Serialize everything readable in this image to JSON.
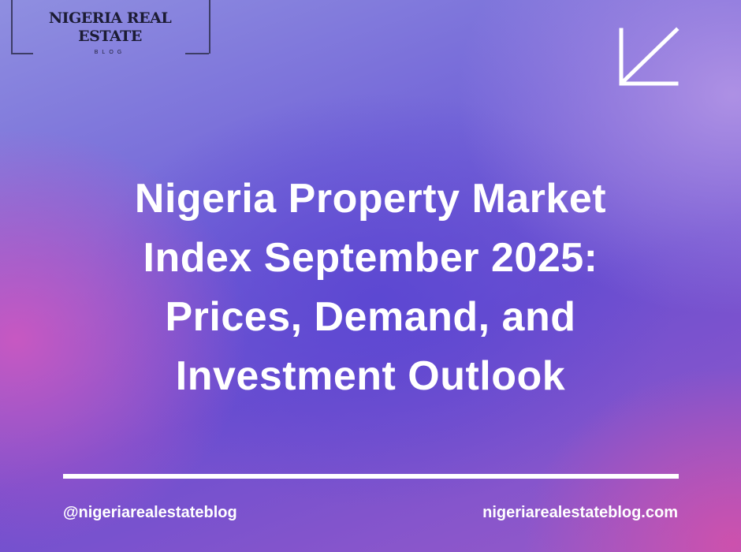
{
  "logo": {
    "line1": "NIGERIA REAL",
    "line2": "ESTATE",
    "sub": "BLOG"
  },
  "icons": {
    "corner": "arrow-down-left-icon"
  },
  "title": {
    "lines": [
      "Nigeria Property Market",
      "Index September 2025:",
      "Prices, Demand, and",
      "Investment Outlook"
    ]
  },
  "footer": {
    "handle": "@nigeriarealestateblog",
    "website": "nigeriarealestateblog.com"
  },
  "colors": {
    "text": "#ffffff",
    "logo": "#1c1c34",
    "accent_pink": "#d656be",
    "accent_blue": "#5a46d2"
  }
}
